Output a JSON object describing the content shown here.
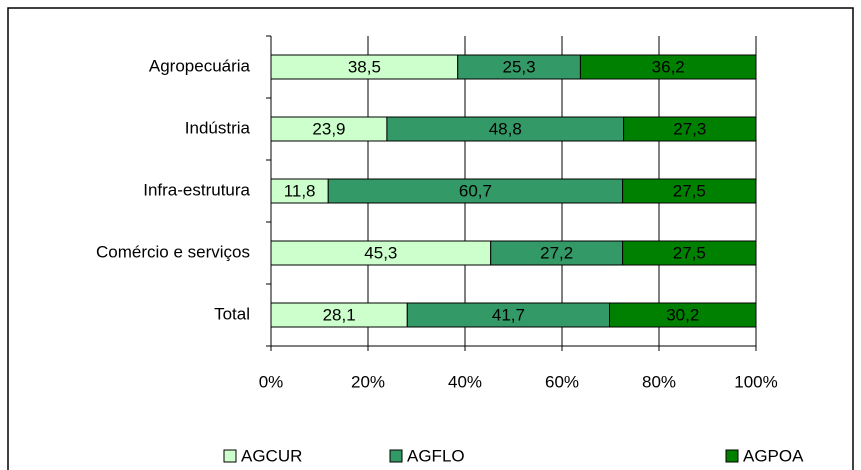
{
  "chart_data": {
    "type": "stacked-bar-horizontal",
    "categories": [
      "Agropecuária",
      "Indústria",
      "Infra-estrutura",
      "Comércio e serviços",
      "Total"
    ],
    "series": [
      {
        "name": "AGCUR",
        "color": "#ccffcc",
        "values": [
          38.5,
          23.9,
          11.8,
          45.3,
          28.1
        ],
        "value_labels": [
          "38,5",
          "23,9",
          "11,8",
          "45,3",
          "28,1"
        ]
      },
      {
        "name": "AGFLO",
        "color": "#339966",
        "values": [
          25.3,
          48.8,
          60.7,
          27.2,
          41.7
        ],
        "value_labels": [
          "25,3",
          "48,8",
          "60,7",
          "27,2",
          "41,7"
        ]
      },
      {
        "name": "AGPOA",
        "color": "#008000",
        "values": [
          36.2,
          27.3,
          27.5,
          27.5,
          30.2
        ],
        "value_labels": [
          "36,2",
          "27,3",
          "27,5",
          "27,5",
          "30,2"
        ]
      }
    ],
    "xlim": [
      0,
      100
    ],
    "xticks": [
      {
        "value": 0,
        "label": "0%"
      },
      {
        "value": 20,
        "label": "20%"
      },
      {
        "value": 40,
        "label": "40%"
      },
      {
        "value": 60,
        "label": "60%"
      },
      {
        "value": 80,
        "label": "80%"
      },
      {
        "value": 100,
        "label": "100%"
      }
    ],
    "grid": true,
    "legend": "bottom"
  }
}
